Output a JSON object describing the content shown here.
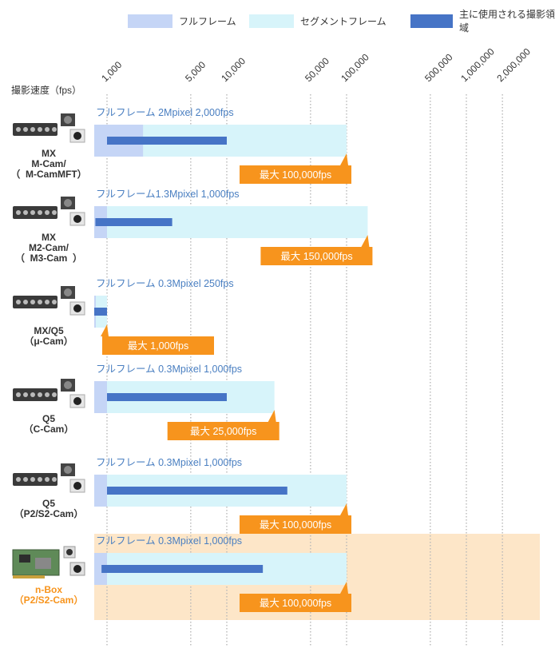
{
  "legend": [
    {
      "label": "フルフレーム",
      "color": "#c5d5f6"
    },
    {
      "label": "セグメントフレーム",
      "color": "#d7f4fa"
    },
    {
      "label": "主に使用される撮影領域",
      "color": "#4674c6"
    }
  ],
  "colors": {
    "full": "#c5d5f6",
    "segment": "#d7f4fa",
    "main": "#4674c6",
    "callout": "#f7941d",
    "highlight_bg": "#fde6c8",
    "fullframe_text": "#4a7fc1"
  },
  "chart_data": {
    "type": "bar",
    "orientation": "horizontal",
    "xscale": "log",
    "ylabel": "撮影速度（fps）",
    "xlim": [
      1000,
      2000000
    ],
    "x_ticks": [
      1000,
      5000,
      10000,
      50000,
      100000,
      500000,
      1000000,
      2000000
    ],
    "x_tick_labels": [
      "1,000",
      "5,000",
      "10,000",
      "50,000",
      "100,000",
      "500,000",
      "1,000,000",
      "2,000,000"
    ],
    "grid": true,
    "legend_position": "top",
    "categories": [
      {
        "name": "MX\nM-Cam/\n（  M-CamMFT）",
        "full_frame_text": "フルフレーム 2Mpixel  2,000fps",
        "full_max": 2000,
        "segment_max": 100000,
        "main_range": [
          1000,
          10000
        ],
        "max_label": "最大 100,000fps",
        "highlight": false
      },
      {
        "name": "MX\nM2-Cam/\n（  M3-Cam  ）",
        "full_frame_text": "フルフレーム1.3Mpixel 1,000fps",
        "full_max": 1000,
        "segment_max": 150000,
        "main_range": [
          800,
          3500
        ],
        "max_label": "最大 150,000fps",
        "highlight": false
      },
      {
        "name": "MX/Q5\n（μ-Cam）",
        "full_frame_text": "フルフレーム 0.3Mpixel  250fps",
        "full_max": 250,
        "segment_max": 1000,
        "main_range": [
          250,
          1000
        ],
        "max_label": "最大 1,000fps",
        "highlight": false
      },
      {
        "name": "Q5\n（C-Cam）",
        "full_frame_text": "フルフレーム 0.3Mpixel  1,000fps",
        "full_max": 1000,
        "segment_max": 25000,
        "main_range": [
          1000,
          10000
        ],
        "max_label": "最大 25,000fps",
        "highlight": false
      },
      {
        "name": "Q5\n（P2/S2-Cam）",
        "full_frame_text": "フルフレーム 0.3Mpixel  1,000fps",
        "full_max": 1000,
        "segment_max": 100000,
        "main_range": [
          1000,
          32000
        ],
        "max_label": "最大 100,000fps",
        "highlight": false
      },
      {
        "name": "n-Box\n（P2/S2-Cam）",
        "full_frame_text": "フルフレーム 0.3Mpixel  1,000fps",
        "full_max": 1000,
        "segment_max": 100000,
        "main_range": [
          900,
          20000
        ],
        "max_label": "最大 100,000fps",
        "highlight": true
      }
    ]
  }
}
